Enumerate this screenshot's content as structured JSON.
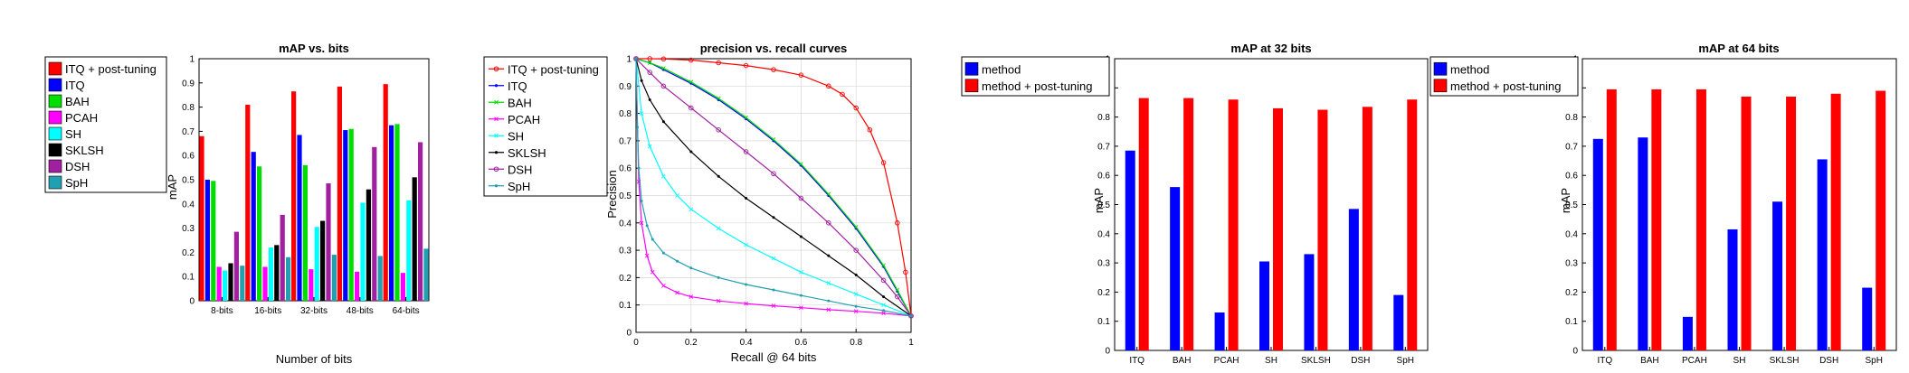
{
  "colors": {
    "itq_pt": "#ff0000",
    "itq": "#0000ff",
    "bah": "#00dd00",
    "pcah": "#ff00ff",
    "sh": "#00ffff",
    "sklsh": "#000000",
    "dsh": "#a020a0",
    "sph": "#20a0b0"
  },
  "chart_data": [
    {
      "type": "bar",
      "title": "mAP vs. bits",
      "xlabel": "Number of bits",
      "ylabel": "mAP",
      "ylim": [
        0,
        1
      ],
      "yticks": [
        "0",
        "0.1",
        "0.2",
        "0.3",
        "0.4",
        "0.5",
        "0.6",
        "0.7",
        "0.8",
        "0.9",
        "1"
      ],
      "categories": [
        "8-bits",
        "16-bits",
        "32-bits",
        "48-bits",
        "64-bits"
      ],
      "legend_position": "left-outside",
      "series": [
        {
          "name": "ITQ + post-tuning",
          "color_key": "itq_pt",
          "values": [
            0.68,
            0.81,
            0.865,
            0.885,
            0.895
          ]
        },
        {
          "name": "ITQ",
          "color_key": "itq",
          "values": [
            0.5,
            0.615,
            0.685,
            0.705,
            0.725
          ]
        },
        {
          "name": "BAH",
          "color_key": "bah",
          "values": [
            0.495,
            0.555,
            0.56,
            0.71,
            0.73
          ]
        },
        {
          "name": "PCAH",
          "color_key": "pcah",
          "values": [
            0.14,
            0.14,
            0.13,
            0.12,
            0.115
          ]
        },
        {
          "name": "SH",
          "color_key": "sh",
          "values": [
            0.125,
            0.22,
            0.305,
            0.405,
            0.415
          ]
        },
        {
          "name": "SKLSH",
          "color_key": "sklsh",
          "values": [
            0.155,
            0.23,
            0.33,
            0.46,
            0.51
          ]
        },
        {
          "name": "DSH",
          "color_key": "dsh",
          "values": [
            0.285,
            0.355,
            0.485,
            0.635,
            0.655
          ]
        },
        {
          "name": "SpH",
          "color_key": "sph",
          "values": [
            0.145,
            0.18,
            0.19,
            0.185,
            0.215
          ]
        }
      ]
    },
    {
      "type": "line",
      "title": "precision vs. recall curves",
      "xlabel": "Recall @ 64 bits",
      "ylabel": "Precision",
      "xlim": [
        0,
        1
      ],
      "ylim": [
        0,
        1
      ],
      "xticks": [
        "0",
        "0.2",
        "0.4",
        "0.6",
        "0.8",
        "1"
      ],
      "yticks": [
        "0",
        "0.1",
        "0.2",
        "0.3",
        "0.4",
        "0.5",
        "0.6",
        "0.7",
        "0.8",
        "0.9",
        "1"
      ],
      "legend_position": "right-outside",
      "series": [
        {
          "name": "ITQ + post-tuning",
          "color_key": "itq_pt",
          "marker": "circle",
          "x": [
            0,
            0.05,
            0.1,
            0.2,
            0.3,
            0.4,
            0.5,
            0.6,
            0.7,
            0.75,
            0.8,
            0.85,
            0.9,
            0.95,
            0.98,
            1
          ],
          "y": [
            1,
            1,
            0.999,
            0.995,
            0.985,
            0.975,
            0.96,
            0.94,
            0.9,
            0.87,
            0.82,
            0.74,
            0.62,
            0.4,
            0.22,
            0.06
          ]
        },
        {
          "name": "ITQ",
          "color_key": "itq",
          "marker": "dot",
          "x": [
            0,
            0.05,
            0.1,
            0.2,
            0.3,
            0.4,
            0.5,
            0.6,
            0.7,
            0.8,
            0.9,
            0.95,
            1
          ],
          "y": [
            1,
            0.985,
            0.96,
            0.91,
            0.85,
            0.78,
            0.7,
            0.61,
            0.5,
            0.38,
            0.24,
            0.15,
            0.06
          ]
        },
        {
          "name": "BAH",
          "color_key": "bah",
          "marker": "x",
          "x": [
            0,
            0.05,
            0.1,
            0.2,
            0.3,
            0.4,
            0.5,
            0.6,
            0.7,
            0.8,
            0.9,
            0.95,
            1
          ],
          "y": [
            1,
            0.985,
            0.965,
            0.915,
            0.855,
            0.785,
            0.705,
            0.615,
            0.505,
            0.385,
            0.245,
            0.155,
            0.06
          ]
        },
        {
          "name": "PCAH",
          "color_key": "pcah",
          "marker": "x",
          "x": [
            0,
            0.01,
            0.02,
            0.04,
            0.06,
            0.1,
            0.15,
            0.2,
            0.3,
            0.4,
            0.5,
            0.6,
            0.7,
            0.8,
            0.9,
            1
          ],
          "y": [
            1,
            0.55,
            0.4,
            0.28,
            0.22,
            0.17,
            0.145,
            0.13,
            0.115,
            0.105,
            0.097,
            0.09,
            0.083,
            0.077,
            0.07,
            0.06
          ]
        },
        {
          "name": "SH",
          "color_key": "sh",
          "marker": "x",
          "x": [
            0,
            0.02,
            0.05,
            0.1,
            0.15,
            0.2,
            0.3,
            0.4,
            0.5,
            0.6,
            0.7,
            0.8,
            0.9,
            1
          ],
          "y": [
            1,
            0.8,
            0.68,
            0.57,
            0.5,
            0.45,
            0.38,
            0.32,
            0.27,
            0.22,
            0.18,
            0.14,
            0.1,
            0.06
          ]
        },
        {
          "name": "SKLSH",
          "color_key": "sklsh",
          "marker": "dot",
          "x": [
            0,
            0.02,
            0.05,
            0.1,
            0.2,
            0.3,
            0.4,
            0.5,
            0.6,
            0.7,
            0.8,
            0.9,
            1
          ],
          "y": [
            1,
            0.92,
            0.85,
            0.77,
            0.66,
            0.57,
            0.49,
            0.42,
            0.35,
            0.28,
            0.21,
            0.13,
            0.06
          ]
        },
        {
          "name": "DSH",
          "color_key": "dsh",
          "marker": "circle",
          "x": [
            0,
            0.05,
            0.1,
            0.2,
            0.3,
            0.4,
            0.5,
            0.6,
            0.7,
            0.8,
            0.9,
            0.95,
            1
          ],
          "y": [
            1,
            0.95,
            0.9,
            0.82,
            0.74,
            0.66,
            0.58,
            0.49,
            0.4,
            0.3,
            0.19,
            0.13,
            0.06
          ]
        },
        {
          "name": "SpH",
          "color_key": "sph",
          "marker": "dot",
          "x": [
            0,
            0.005,
            0.01,
            0.02,
            0.04,
            0.06,
            0.1,
            0.15,
            0.2,
            0.3,
            0.4,
            0.5,
            0.6,
            0.7,
            0.8,
            0.9,
            1
          ],
          "y": [
            1,
            0.75,
            0.6,
            0.48,
            0.39,
            0.34,
            0.29,
            0.26,
            0.235,
            0.2,
            0.175,
            0.155,
            0.135,
            0.115,
            0.095,
            0.08,
            0.06
          ]
        }
      ]
    },
    {
      "type": "bar",
      "title": "mAP at 32 bits",
      "xlabel": "",
      "ylabel": "mAP",
      "ylim": [
        0,
        1
      ],
      "yticks": [
        "0",
        "0.1",
        "0.2",
        "0.3",
        "0.4",
        "0.5",
        "0.6",
        "0.7",
        "0.8",
        "0.9",
        "1"
      ],
      "categories": [
        "ITQ",
        "BAH",
        "PCAH",
        "SH",
        "SKLSH",
        "DSH",
        "SpH"
      ],
      "legend_position": "left-outside",
      "series": [
        {
          "name": "method",
          "color_key": "itq",
          "values": [
            0.685,
            0.56,
            0.13,
            0.305,
            0.33,
            0.485,
            0.19
          ]
        },
        {
          "name": "method + post-tuning",
          "color_key": "itq_pt",
          "values": [
            0.865,
            0.865,
            0.86,
            0.83,
            0.825,
            0.835,
            0.86
          ]
        }
      ]
    },
    {
      "type": "bar",
      "title": "mAP at 64 bits",
      "xlabel": "",
      "ylabel": "mAP",
      "ylim": [
        0,
        1
      ],
      "yticks": [
        "0",
        "0.1",
        "0.2",
        "0.3",
        "0.4",
        "0.5",
        "0.6",
        "0.7",
        "0.8",
        "0.9",
        "1"
      ],
      "categories": [
        "ITQ",
        "BAH",
        "PCAH",
        "SH",
        "SKLSH",
        "DSH",
        "SpH"
      ],
      "legend_position": "top-left",
      "series": [
        {
          "name": "method",
          "color_key": "itq",
          "values": [
            0.725,
            0.73,
            0.115,
            0.415,
            0.51,
            0.655,
            0.215
          ]
        },
        {
          "name": "method + post-tuning",
          "color_key": "itq_pt",
          "values": [
            0.895,
            0.895,
            0.895,
            0.87,
            0.87,
            0.88,
            0.89
          ]
        }
      ]
    }
  ]
}
